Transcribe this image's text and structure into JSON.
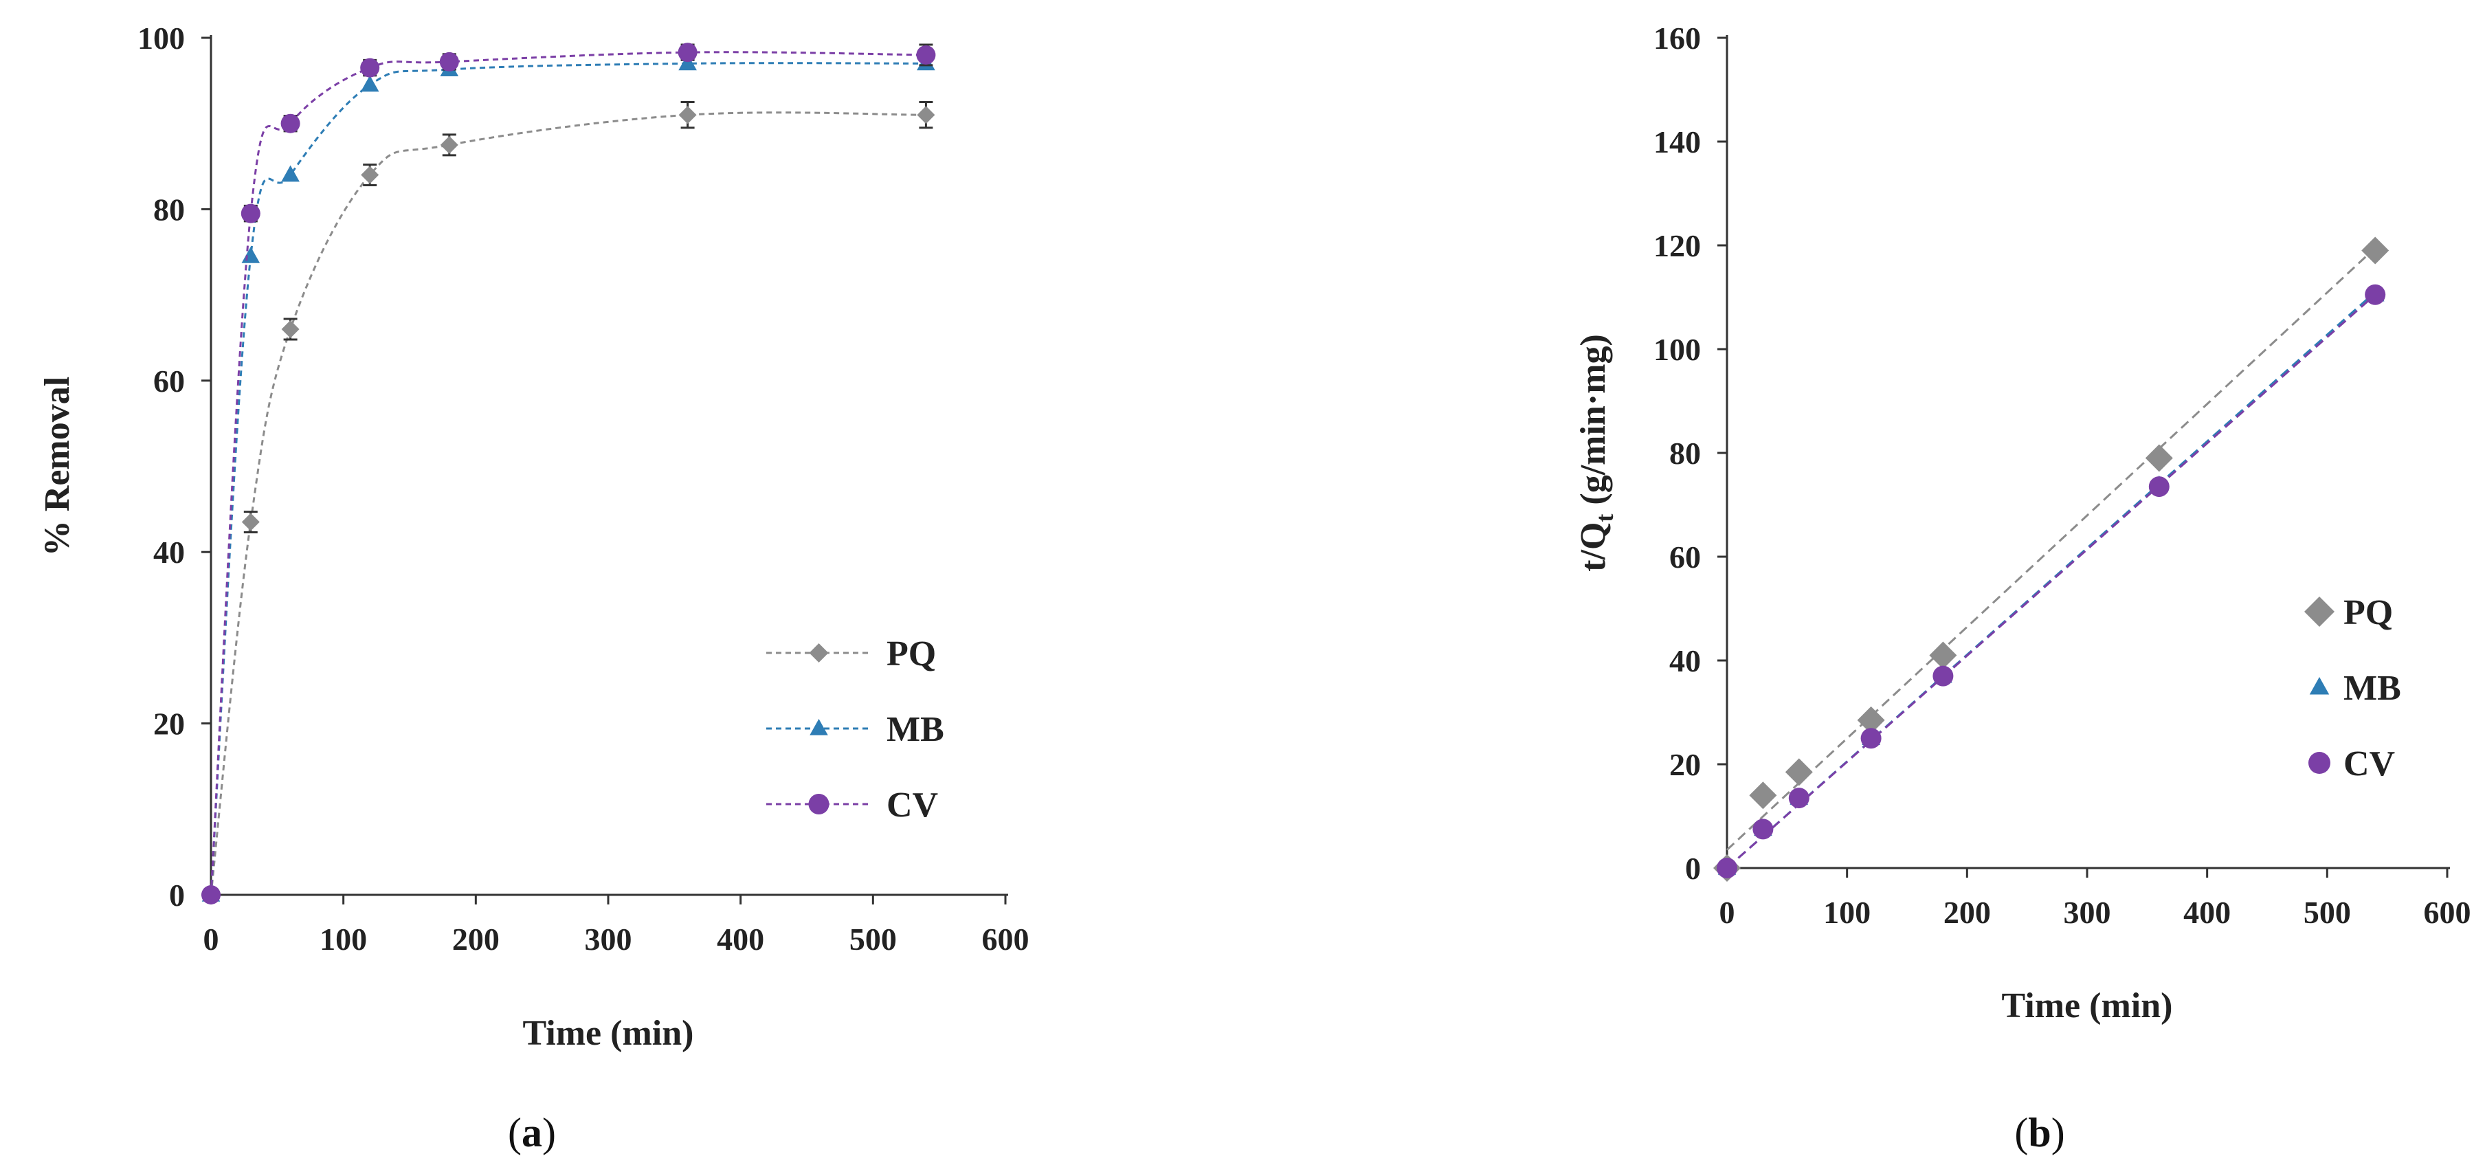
{
  "chart_data": [
    {
      "panel": "a",
      "panel_label": {
        "open": "(",
        "letter": "a",
        "close": ")"
      },
      "type": "line",
      "title": "",
      "xlabel": "Time (min)",
      "ylabel": "% Removal",
      "xlim": [
        0,
        600
      ],
      "ylim": [
        0,
        100
      ],
      "xticks": [
        0,
        100,
        200,
        300,
        400,
        500,
        600
      ],
      "yticks": [
        0,
        20,
        40,
        60,
        80,
        100
      ],
      "grid": false,
      "legend_position": "lower-right",
      "x": [
        0,
        30,
        60,
        120,
        180,
        360,
        540
      ],
      "series": [
        {
          "name": "PQ",
          "color": "#8c8c8c",
          "marker": "diamond",
          "values": [
            0,
            43.5,
            66,
            84,
            87.5,
            91,
            91
          ],
          "error": [
            0,
            1.2,
            1.2,
            1.2,
            1.2,
            1.5,
            1.5
          ]
        },
        {
          "name": "MB",
          "color": "#2e7db5",
          "marker": "triangle",
          "values": [
            0,
            74.5,
            84,
            94.5,
            96.3,
            97,
            97
          ],
          "error": [
            0,
            0,
            0,
            0,
            0,
            0,
            0
          ]
        },
        {
          "name": "CV",
          "color": "#7b3fa6",
          "marker": "circle",
          "values": [
            0,
            79.5,
            90,
            96.5,
            97.2,
            98.3,
            98
          ],
          "error": [
            0,
            0.9,
            0.9,
            0.9,
            0.9,
            0.9,
            1.2
          ]
        }
      ]
    },
    {
      "panel": "b",
      "panel_label": {
        "open": "(",
        "letter": "b",
        "close": ")"
      },
      "type": "scatter",
      "title": "",
      "xlabel": "Time (min)",
      "ylabel_main": "t/Q",
      "ylabel_sub": "t",
      "ylabel_rest": " (g/min·mg)",
      "xlim": [
        0,
        600
      ],
      "ylim": [
        0,
        160
      ],
      "xticks": [
        0,
        100,
        200,
        300,
        400,
        500,
        600
      ],
      "yticks": [
        0,
        20,
        40,
        60,
        80,
        100,
        120,
        140,
        160
      ],
      "grid": false,
      "legend_position": "right",
      "x": [
        0,
        30,
        60,
        120,
        180,
        360,
        540
      ],
      "series": [
        {
          "name": "PQ",
          "color": "#8c8c8c",
          "marker": "diamond",
          "values": [
            0,
            14,
            18.5,
            28.5,
            41,
            79,
            119
          ],
          "fit_line": [
            3.5,
            119.5
          ]
        },
        {
          "name": "MB",
          "color": "#2e7db5",
          "marker": "triangle",
          "values": [
            0,
            7.5,
            13.5,
            25,
            37,
            73.8,
            110.5
          ],
          "fit_line": [
            0,
            111
          ]
        },
        {
          "name": "CV",
          "color": "#7b3fa6",
          "marker": "circle",
          "values": [
            0,
            7.5,
            13.5,
            25,
            37,
            73.5,
            110.5
          ],
          "fit_line": [
            0,
            110.5
          ]
        }
      ]
    }
  ]
}
